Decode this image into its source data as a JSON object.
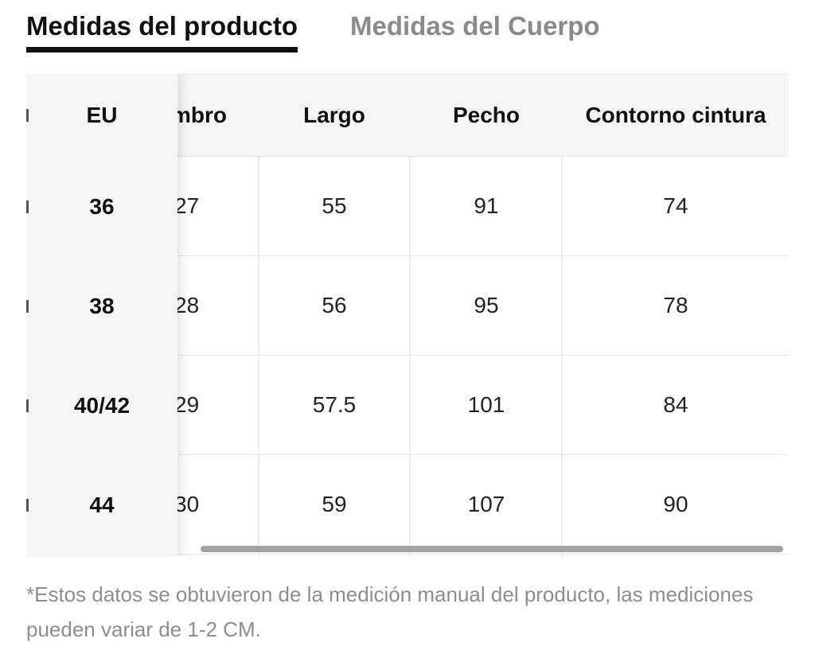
{
  "tabs": {
    "active": "Medidas del producto",
    "inactive": "Medidas del Cuerpo"
  },
  "table": {
    "sticky_header": "EU",
    "headers": [
      "mbro",
      "Largo",
      "Pecho",
      "Contorno cintura"
    ],
    "rows": [
      {
        "size": "36",
        "cells": [
          "27",
          "55",
          "91",
          "74"
        ]
      },
      {
        "size": "38",
        "cells": [
          "28",
          "56",
          "95",
          "78"
        ]
      },
      {
        "size": "40/42",
        "cells": [
          "29",
          "57.5",
          "101",
          "84"
        ]
      },
      {
        "size": "44",
        "cells": [
          "30",
          "59",
          "107",
          "90"
        ]
      }
    ]
  },
  "note": "*Estos datos se obtuvieron de la medición manual del producto, las mediciones pueden variar de 1-2 CM."
}
